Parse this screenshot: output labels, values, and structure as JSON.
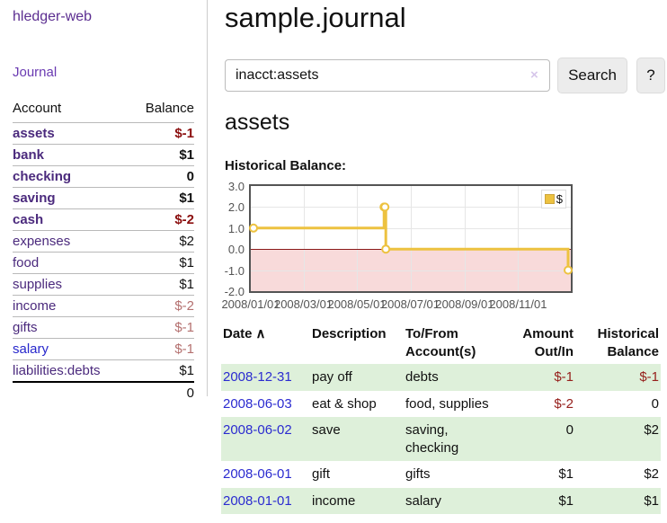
{
  "sidebar": {
    "app_title": "hledger-web",
    "journal_link": "Journal",
    "table": {
      "headers": {
        "account": "Account",
        "balance": "Balance"
      },
      "rows": [
        {
          "label": "assets",
          "indent": 1,
          "bold": true,
          "balance": "$-1"
        },
        {
          "label": "bank",
          "indent": 2,
          "bold": true,
          "balance": "$1"
        },
        {
          "label": "checking",
          "indent": 3,
          "bold": true,
          "balance": "0"
        },
        {
          "label": "saving",
          "indent": 3,
          "bold": true,
          "balance": "$1"
        },
        {
          "label": "cash",
          "indent": 2,
          "bold": true,
          "balance": "$-2"
        },
        {
          "label": "expenses",
          "indent": 1,
          "bold": false,
          "balance": "$2"
        },
        {
          "label": "food",
          "indent": 2,
          "bold": false,
          "balance": "$1"
        },
        {
          "label": "supplies",
          "indent": 2,
          "bold": false,
          "balance": "$1"
        },
        {
          "label": "income",
          "indent": 1,
          "bold": false,
          "balance": "$-2"
        },
        {
          "label": "gifts",
          "indent": 2,
          "bold": false,
          "balance": "$-1"
        },
        {
          "label": "salary",
          "indent": 2,
          "bold": false,
          "balance": "$-1",
          "link_color": "blue"
        },
        {
          "label": "liabilities:debts",
          "indent": 1,
          "bold": false,
          "balance": "$1"
        }
      ],
      "total": "0"
    }
  },
  "header": {
    "title": "sample.journal"
  },
  "search": {
    "value": "inacct:assets",
    "clear_icon": "×",
    "button_label": "Search",
    "help_label": "?"
  },
  "account_page": {
    "heading": "assets",
    "chart_label": "Historical Balance:"
  },
  "chart_data": {
    "type": "line",
    "mode": "steps",
    "title": "Historical Balance",
    "legend": "$",
    "legend_position": "top-right",
    "line_color": "#edc240",
    "zero_line_color": "#8b1a1a",
    "negative_region_color": "#f8dada",
    "grid": true,
    "x_range": [
      "2008-01-01",
      "2008-12-31"
    ],
    "ylim": [
      -2,
      3
    ],
    "y_ticks": [
      "3.0",
      "2.0",
      "1.0",
      "0.0",
      "-1.0",
      "-2.0"
    ],
    "x_ticks": [
      "2008/01/01",
      "2008/03/01",
      "2008/05/01",
      "2008/07/01",
      "2008/09/01",
      "2008/11/01"
    ],
    "series": [
      {
        "name": "$",
        "points": [
          {
            "date": "2008-01-01",
            "value": 1
          },
          {
            "date": "2008-06-01",
            "value": 2
          },
          {
            "date": "2008-06-02",
            "value": 2
          },
          {
            "date": "2008-06-03",
            "value": 0
          },
          {
            "date": "2008-12-31",
            "value": -1
          }
        ]
      }
    ]
  },
  "register": {
    "headers": {
      "date": "Date",
      "sort_icon": "∧",
      "description": "Description",
      "account": "To/From Account(s)",
      "amount": "Amount Out/In",
      "balance": "Historical Balance"
    },
    "rows": [
      {
        "date": "2008-12-31",
        "description": "pay off",
        "account": "debts",
        "amount": "$-1",
        "balance": "$-1"
      },
      {
        "date": "2008-06-03",
        "description": "eat & shop",
        "account": "food, supplies",
        "amount": "$-2",
        "balance": "0"
      },
      {
        "date": "2008-06-02",
        "description": "save",
        "account": "saving,\nchecking",
        "amount": "0",
        "balance": "$2"
      },
      {
        "date": "2008-06-01",
        "description": "gift",
        "account": "gifts",
        "amount": "$1",
        "balance": "$2"
      },
      {
        "date": "2008-01-01",
        "description": "income",
        "account": "salary",
        "amount": "$1",
        "balance": "$1"
      }
    ]
  }
}
